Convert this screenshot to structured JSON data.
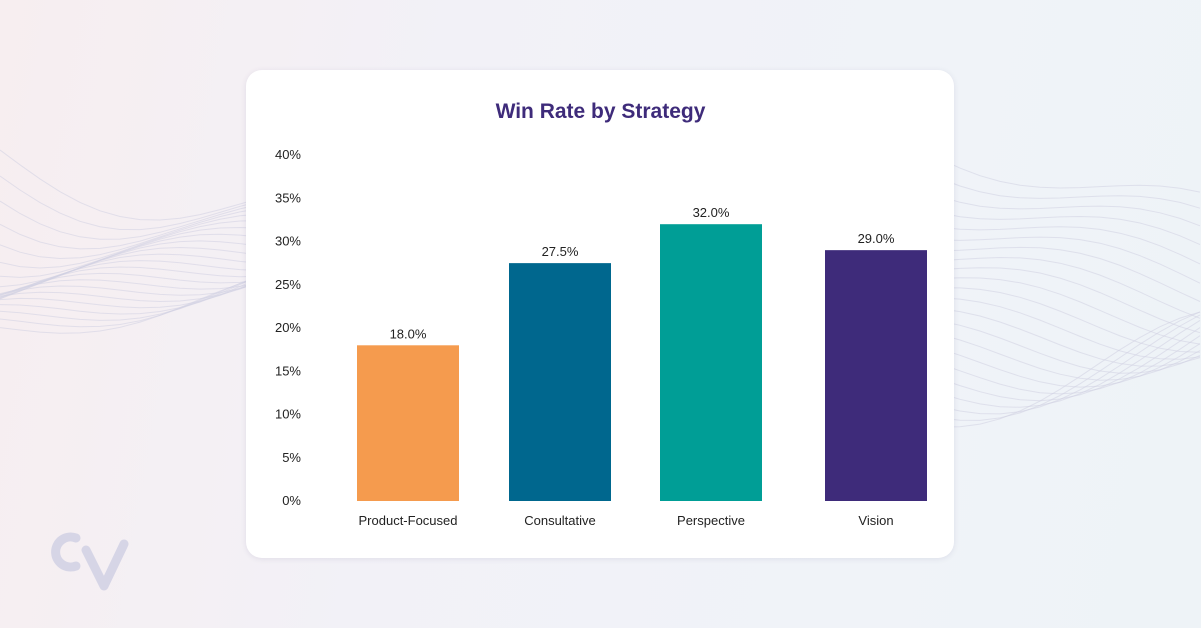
{
  "chart_data": {
    "type": "bar",
    "title": "Win Rate by Strategy",
    "xlabel": "",
    "ylabel": "",
    "categories": [
      "Product-Focused",
      "Consultative",
      "Perspective",
      "Vision"
    ],
    "values": [
      18.0,
      27.5,
      32.0,
      29.0
    ],
    "value_labels": [
      "18.0%",
      "27.5%",
      "32.0%",
      "29.0%"
    ],
    "colors": [
      "#f59b4e",
      "#00678e",
      "#009e96",
      "#3e2b7a"
    ],
    "ylim": [
      0,
      40
    ],
    "y_ticks": [
      0,
      5,
      10,
      15,
      20,
      25,
      30,
      35,
      40
    ],
    "y_tick_labels": [
      "0%",
      "5%",
      "10%",
      "15%",
      "20%",
      "25%",
      "30%",
      "35%",
      "40%"
    ],
    "grid": false,
    "legend": "none"
  },
  "brand": {
    "logo_text": "CV",
    "title_color": "#3e2b7a"
  }
}
